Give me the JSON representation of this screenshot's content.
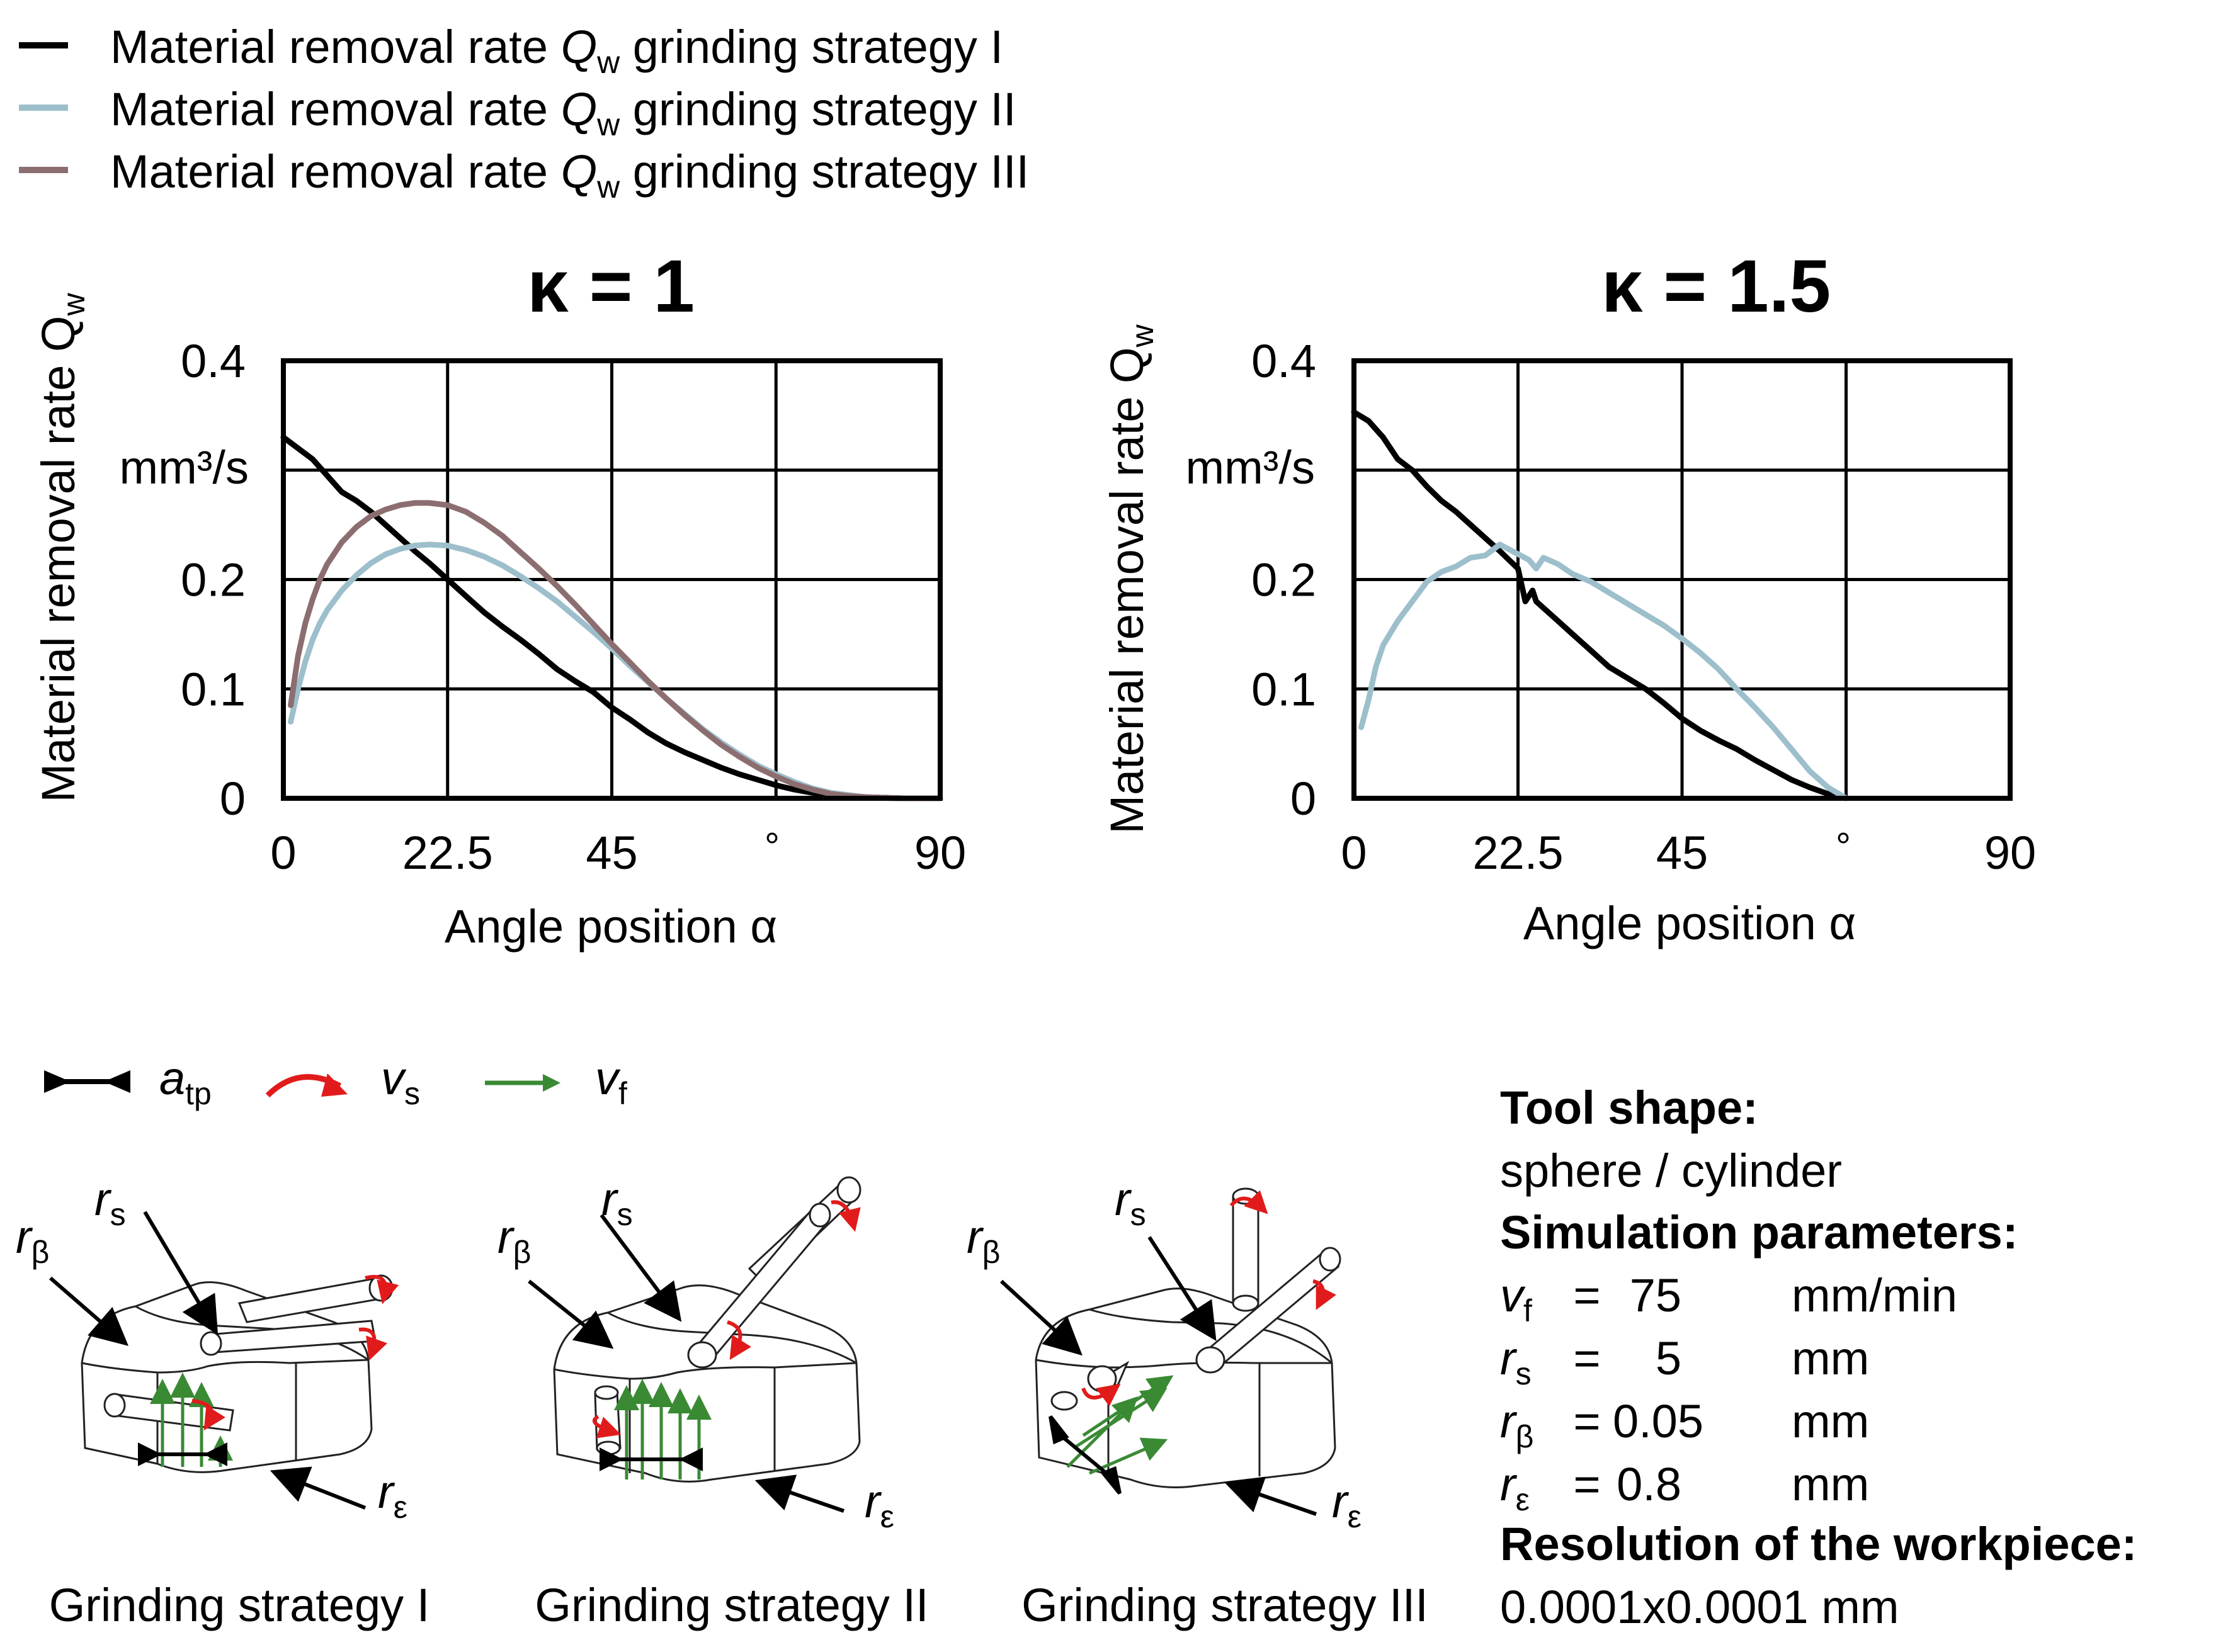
{
  "legend": {
    "items": [
      {
        "prefix": "Material removal rate ",
        "symbol": "Q",
        "subscript": "w",
        "suffix": " grinding strategy I",
        "color": "#000000"
      },
      {
        "prefix": "Material removal rate ",
        "symbol": "Q",
        "subscript": "w",
        "suffix": " grinding strategy II",
        "color": "#9dbfcc"
      },
      {
        "prefix": "Material removal rate ",
        "symbol": "Q",
        "subscript": "w",
        "suffix": " grinding strategy III",
        "color": "#8c6e70"
      }
    ]
  },
  "chart_data": [
    {
      "type": "line",
      "title": "κ = 1",
      "ylabel": "Material removal rate Q",
      "ylabel_sub": "w",
      "yunit": "mm³/s",
      "xlabel": "Angle position α",
      "xunit": "°",
      "xlim": [
        0,
        90
      ],
      "ylim": [
        0,
        0.4
      ],
      "xticks": [
        "0",
        "22.5",
        "45",
        "90"
      ],
      "yticks": [
        "0",
        "0.1",
        "0.2",
        "0.4"
      ],
      "grid": true,
      "series": [
        {
          "name": "grinding strategy I",
          "color": "#000000",
          "x": [
            0,
            2,
            4,
            6,
            8,
            10,
            12,
            14,
            16,
            18,
            20,
            22.5,
            25,
            27.5,
            30,
            32.5,
            35,
            37.5,
            40,
            42.5,
            45,
            47.5,
            50,
            52.5,
            55,
            57.5,
            60,
            62.5,
            65,
            67.5,
            70,
            72.5,
            75,
            77.5,
            80,
            82.5,
            85,
            90
          ],
          "y": [
            0.33,
            0.32,
            0.31,
            0.295,
            0.28,
            0.272,
            0.262,
            0.25,
            0.238,
            0.226,
            0.215,
            0.2,
            0.185,
            0.17,
            0.157,
            0.145,
            0.132,
            0.118,
            0.107,
            0.097,
            0.083,
            0.072,
            0.06,
            0.05,
            0.042,
            0.035,
            0.028,
            0.022,
            0.017,
            0.012,
            0.008,
            0.005,
            0.003,
            0.002,
            0.001,
            0.0005,
            0,
            0
          ]
        },
        {
          "name": "grinding strategy II",
          "color": "#9dbfcc",
          "x": [
            1,
            2,
            3,
            4,
            5,
            6,
            8,
            10,
            12,
            14,
            16,
            18,
            20,
            22.5,
            25,
            27.5,
            30,
            32.5,
            35,
            37.5,
            40,
            42.5,
            45,
            47.5,
            50,
            52.5,
            55,
            57.5,
            60,
            62.5,
            65,
            67.5,
            70,
            72.5,
            75,
            77.5,
            80,
            82.5,
            85,
            88,
            90
          ],
          "y": [
            0.07,
            0.1,
            0.125,
            0.145,
            0.16,
            0.172,
            0.19,
            0.204,
            0.215,
            0.223,
            0.228,
            0.231,
            0.232,
            0.231,
            0.227,
            0.221,
            0.213,
            0.203,
            0.192,
            0.18,
            0.166,
            0.152,
            0.137,
            0.121,
            0.106,
            0.091,
            0.077,
            0.063,
            0.051,
            0.04,
            0.03,
            0.022,
            0.015,
            0.009,
            0.005,
            0.003,
            0.001,
            0.0003,
            0,
            0,
            0
          ]
        },
        {
          "name": "grinding strategy III",
          "color": "#8c6e70",
          "x": [
            1,
            2,
            3,
            4,
            5,
            6,
            8,
            10,
            12,
            14,
            16,
            18,
            20,
            22.5,
            25,
            27.5,
            30,
            32.5,
            35,
            37.5,
            40,
            42.5,
            45,
            47.5,
            50,
            52.5,
            55,
            57.5,
            60,
            62.5,
            65,
            67.5,
            70,
            72.5,
            75,
            77.5,
            80,
            82.5,
            85,
            88,
            90
          ],
          "y": [
            0.085,
            0.13,
            0.16,
            0.182,
            0.2,
            0.214,
            0.234,
            0.248,
            0.258,
            0.264,
            0.268,
            0.27,
            0.27,
            0.268,
            0.262,
            0.252,
            0.24,
            0.225,
            0.21,
            0.194,
            0.177,
            0.159,
            0.141,
            0.124,
            0.107,
            0.091,
            0.076,
            0.062,
            0.049,
            0.038,
            0.028,
            0.02,
            0.013,
            0.008,
            0.004,
            0.002,
            0.001,
            0.0003,
            0,
            0,
            0
          ]
        }
      ]
    },
    {
      "type": "line",
      "title": "κ = 1.5",
      "ylabel": "Material removal rate Q",
      "ylabel_sub": "w",
      "yunit": "mm³/s",
      "xlabel": "Angle position α",
      "xunit": "°",
      "xlim": [
        0,
        90
      ],
      "ylim": [
        0,
        0.4
      ],
      "xticks": [
        "0",
        "22.5",
        "45",
        "90"
      ],
      "yticks": [
        "0",
        "0.1",
        "0.2",
        "0.4"
      ],
      "grid": true,
      "series": [
        {
          "name": "grinding strategy I",
          "color": "#000000",
          "x": [
            0,
            2,
            4,
            6,
            8,
            10,
            12,
            14,
            16,
            18,
            20,
            22.5,
            23.5,
            24.5,
            25,
            27.5,
            30,
            32.5,
            35,
            37.5,
            40,
            42.5,
            45,
            47.5,
            50,
            52.5,
            55,
            57.5,
            60,
            62.5,
            65,
            67.5
          ],
          "y": [
            0.353,
            0.345,
            0.33,
            0.31,
            0.3,
            0.285,
            0.272,
            0.262,
            0.25,
            0.238,
            0.226,
            0.21,
            0.18,
            0.19,
            0.18,
            0.165,
            0.15,
            0.135,
            0.12,
            0.11,
            0.1,
            0.087,
            0.073,
            0.062,
            0.053,
            0.045,
            0.035,
            0.026,
            0.017,
            0.01,
            0.004,
            0
          ]
        },
        {
          "name": "grinding strategy II",
          "color": "#9dbfcc",
          "x": [
            1,
            2,
            3,
            4,
            6,
            8,
            10,
            12,
            14,
            16,
            18,
            20,
            22,
            24,
            25,
            26,
            28,
            30,
            32.5,
            35,
            37.5,
            40,
            42.5,
            45,
            47.5,
            50,
            52.5,
            55,
            57.5,
            60,
            62.5,
            65,
            67.5
          ],
          "y": [
            0.065,
            0.09,
            0.12,
            0.14,
            0.162,
            0.18,
            0.198,
            0.207,
            0.212,
            0.22,
            0.222,
            0.232,
            0.225,
            0.218,
            0.21,
            0.22,
            0.214,
            0.205,
            0.198,
            0.188,
            0.178,
            0.168,
            0.158,
            0.146,
            0.133,
            0.118,
            0.1,
            0.083,
            0.065,
            0.045,
            0.025,
            0.01,
            0
          ]
        }
      ]
    }
  ],
  "icons_legend": {
    "atp": {
      "symbol": "a",
      "sub": "tp"
    },
    "vs": {
      "symbol": "v",
      "sub": "s"
    },
    "vf": {
      "symbol": "v",
      "sub": "f"
    }
  },
  "strategies": [
    {
      "caption": "Grinding strategy I"
    },
    {
      "caption": "Grinding strategy II"
    },
    {
      "caption": "Grinding strategy III"
    }
  ],
  "labels": {
    "rs": {
      "symbol": "r",
      "sub": "s"
    },
    "rb": {
      "symbol": "r",
      "sub": "β"
    },
    "re": {
      "symbol": "r",
      "sub": "ε"
    }
  },
  "params": {
    "tool_shape_label": "Tool shape:",
    "tool_shape_value": "sphere / cylinder",
    "sim_label": "Simulation parameters:",
    "rows": [
      {
        "symbol": "v",
        "sub": "f",
        "eq": "=",
        "value": "75",
        "unit": "mm/min"
      },
      {
        "symbol": "r",
        "sub": "s",
        "eq": "=",
        "value": "5",
        "unit": "mm"
      },
      {
        "symbol": "r",
        "sub": "β",
        "eq": "=",
        "value": "0.05",
        "unit": "mm"
      },
      {
        "symbol": "r",
        "sub": "ε",
        "eq": "=",
        "value": "0.8",
        "unit": "mm"
      }
    ],
    "res_label": "Resolution of the workpiece:",
    "res_value": "0.0001x0.0001 mm"
  },
  "colors": {
    "force_red": "#e11b1b",
    "feed_green": "#3a8a34"
  }
}
